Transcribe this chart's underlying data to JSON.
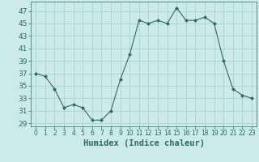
{
  "x": [
    0,
    1,
    2,
    3,
    4,
    5,
    6,
    7,
    8,
    9,
    10,
    11,
    12,
    13,
    14,
    15,
    16,
    17,
    18,
    19,
    20,
    21,
    22,
    23
  ],
  "y": [
    37,
    36.5,
    34.5,
    31.5,
    32,
    31.5,
    29.5,
    29.5,
    31,
    36,
    40,
    45.5,
    45,
    45.5,
    45,
    47.5,
    45.5,
    45.5,
    46,
    45,
    39,
    34.5,
    33.5,
    33
  ],
  "line_color": "#2e6b5e",
  "marker": "D",
  "marker_size": 2,
  "bg_color": "#cceaea",
  "grid_color": "#a8cccc",
  "xlabel": "Humidex (Indice chaleur)",
  "ylim": [
    28.5,
    48.5
  ],
  "xlim": [
    -0.5,
    23.5
  ],
  "yticks": [
    29,
    31,
    33,
    35,
    37,
    39,
    41,
    43,
    45,
    47
  ],
  "xticks": [
    0,
    1,
    2,
    3,
    4,
    5,
    6,
    7,
    8,
    9,
    10,
    11,
    12,
    13,
    14,
    15,
    16,
    17,
    18,
    19,
    20,
    21,
    22,
    23
  ],
  "tick_color": "#2e6b5e",
  "xlabel_fontsize": 7.5,
  "ytick_fontsize": 6.5,
  "xtick_fontsize": 5.5
}
